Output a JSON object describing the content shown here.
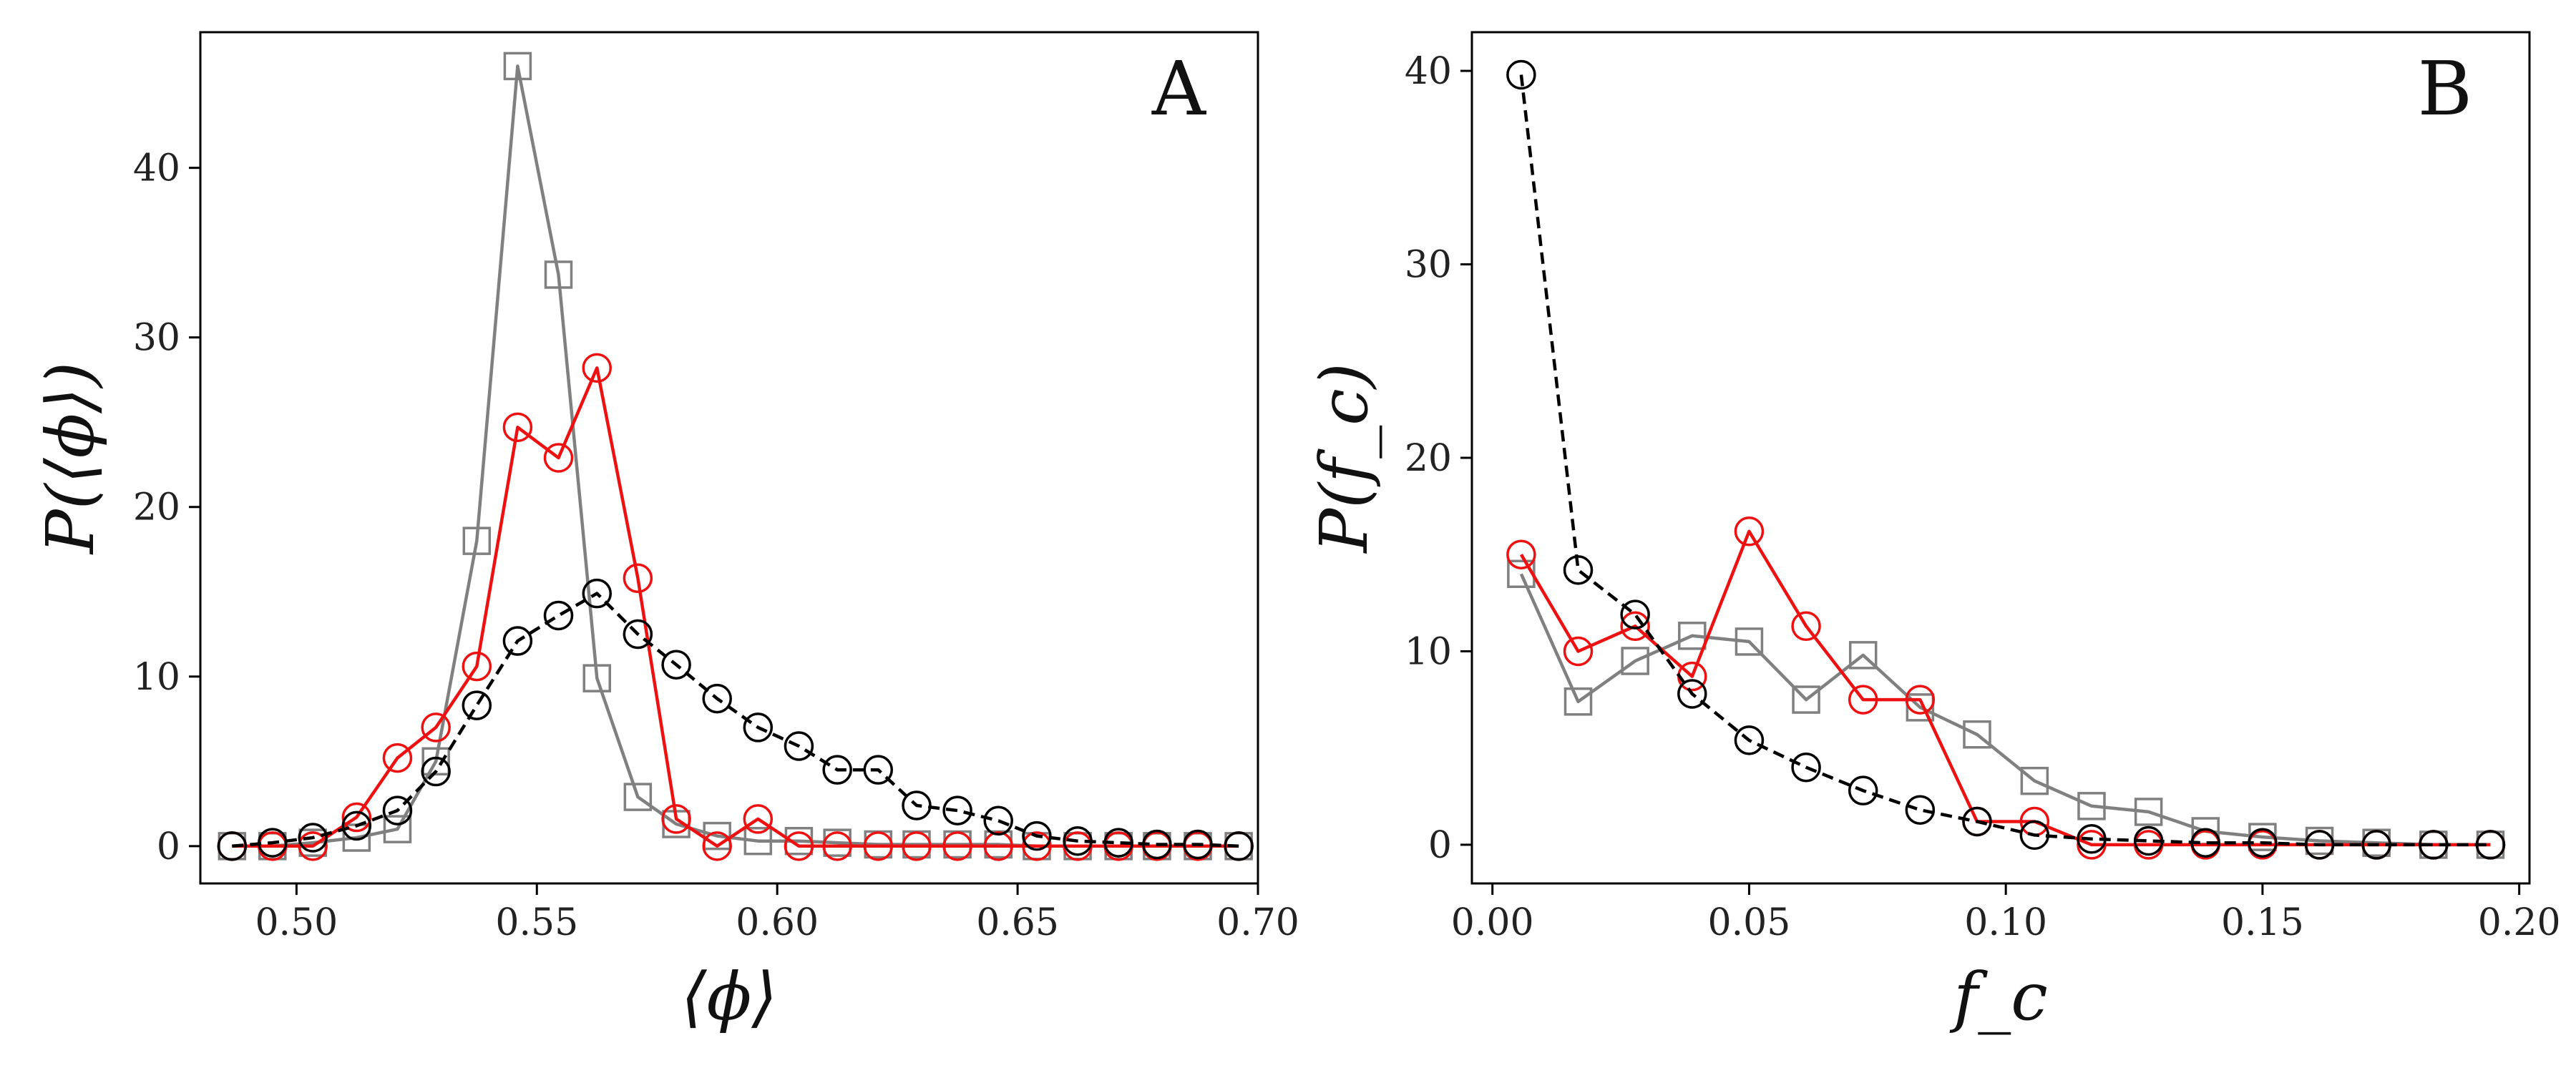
{
  "chart_data": [
    {
      "type": "line",
      "panel_label": "A",
      "xlabel": "⟨ϕ⟩",
      "ylabel": "P(⟨ϕ⟩)",
      "xlim": [
        0.48,
        0.7
      ],
      "ylim": [
        -2.2,
        48
      ],
      "xticks": [
        0.5,
        0.55,
        0.6,
        0.65,
        0.7
      ],
      "xtick_labels": [
        "0.50",
        "0.55",
        "0.60",
        "0.65",
        "0.70"
      ],
      "yticks": [
        0,
        10,
        20,
        30,
        40
      ],
      "ytick_labels": [
        "0",
        "10",
        "20",
        "30",
        "40"
      ],
      "series": [
        {
          "name": "gray squares",
          "color": "#808080",
          "dash": "solid",
          "marker": "square",
          "x": [
            0.4866,
            0.495,
            0.5034,
            0.5125,
            0.521,
            0.529,
            0.5375,
            0.546,
            0.5545,
            0.5625,
            0.571,
            0.579,
            0.5875,
            0.596,
            0.6045,
            0.6125,
            0.621,
            0.629,
            0.6375,
            0.646,
            0.654,
            0.6625,
            0.671,
            0.679,
            0.6875,
            0.696
          ],
          "values": [
            0,
            0,
            0.2,
            0.5,
            1.0,
            5.0,
            18.0,
            46.0,
            33.7,
            9.9,
            2.9,
            1.3,
            0.6,
            0.3,
            0.3,
            0.2,
            0.1,
            0.1,
            0.1,
            0.1,
            0,
            0,
            0,
            0,
            0,
            0
          ]
        },
        {
          "name": "red circles",
          "color": "#ee1111",
          "dash": "solid",
          "marker": "circle",
          "x": [
            0.4866,
            0.495,
            0.5034,
            0.5125,
            0.521,
            0.529,
            0.5375,
            0.546,
            0.5545,
            0.5625,
            0.571,
            0.579,
            0.5875,
            0.596,
            0.6045,
            0.6125,
            0.621,
            0.629,
            0.6375,
            0.646,
            0.654,
            0.6625,
            0.671,
            0.679,
            0.6875,
            0.696
          ],
          "values": [
            0,
            0,
            0,
            1.7,
            5.2,
            7.0,
            10.6,
            24.7,
            22.9,
            28.2,
            15.8,
            1.6,
            0,
            1.6,
            0,
            0,
            0,
            0,
            0,
            0,
            0,
            0,
            0,
            0,
            0,
            0
          ]
        },
        {
          "name": "black circles",
          "color": "#000000",
          "dash": "dashed",
          "marker": "circle",
          "x": [
            0.4866,
            0.495,
            0.5034,
            0.5125,
            0.521,
            0.529,
            0.5375,
            0.546,
            0.5545,
            0.5625,
            0.571,
            0.579,
            0.5875,
            0.596,
            0.6045,
            0.6125,
            0.621,
            0.629,
            0.6375,
            0.646,
            0.654,
            0.6625,
            0.671,
            0.679,
            0.6875,
            0.696
          ],
          "values": [
            0,
            0.2,
            0.5,
            1.2,
            2.1,
            4.4,
            8.3,
            12.1,
            13.6,
            14.9,
            12.5,
            10.7,
            8.7,
            7.0,
            5.9,
            4.5,
            4.5,
            2.4,
            2.1,
            1.5,
            0.6,
            0.3,
            0.2,
            0.1,
            0.1,
            0
          ]
        }
      ]
    },
    {
      "type": "line",
      "panel_label": "B",
      "xlabel": "f_c",
      "ylabel": "P(f_c)",
      "xlim": [
        -0.004,
        0.202
      ],
      "ylim": [
        -2.0,
        42.0
      ],
      "xticks": [
        0.0,
        0.05,
        0.1,
        0.15,
        0.2
      ],
      "xtick_labels": [
        "0.00",
        "0.05",
        "0.10",
        "0.15",
        "0.20"
      ],
      "yticks": [
        0,
        10,
        20,
        30,
        40
      ],
      "ytick_labels": [
        "0",
        "10",
        "20",
        "30",
        "40"
      ],
      "series": [
        {
          "name": "gray squares",
          "color": "#808080",
          "dash": "solid",
          "marker": "square",
          "x": [
            0.0056,
            0.0167,
            0.0278,
            0.0389,
            0.05,
            0.0611,
            0.0722,
            0.0833,
            0.0944,
            0.1056,
            0.1167,
            0.1278,
            0.1389,
            0.15,
            0.1611,
            0.1722,
            0.1833,
            0.1944
          ],
          "values": [
            14.0,
            7.4,
            9.5,
            10.8,
            10.5,
            7.5,
            9.8,
            7.1,
            5.7,
            3.3,
            2.0,
            1.7,
            0.7,
            0.4,
            0.2,
            0.1,
            0,
            0
          ]
        },
        {
          "name": "red circles",
          "color": "#ee1111",
          "dash": "solid",
          "marker": "circle",
          "x": [
            0.0056,
            0.0167,
            0.0278,
            0.0389,
            0.05,
            0.0611,
            0.0722,
            0.0833,
            0.0944,
            0.1056,
            0.1167,
            0.1278,
            0.1389,
            0.15,
            0.1611,
            0.1722,
            0.1833,
            0.1944
          ],
          "values": [
            15.0,
            10.0,
            11.3,
            8.7,
            16.2,
            11.3,
            7.5,
            7.5,
            1.2,
            1.2,
            0,
            0,
            0,
            0,
            0,
            0,
            0,
            0
          ]
        },
        {
          "name": "black circles",
          "color": "#000000",
          "dash": "dashed",
          "marker": "circle",
          "x": [
            0.0056,
            0.0167,
            0.0278,
            0.0389,
            0.05,
            0.0611,
            0.0722,
            0.0833,
            0.0944,
            0.1056,
            0.1167,
            0.1278,
            0.1389,
            0.15,
            0.1611,
            0.1722,
            0.1833,
            0.1944
          ],
          "values": [
            39.8,
            14.2,
            11.9,
            7.8,
            5.4,
            4.0,
            2.8,
            1.8,
            1.2,
            0.5,
            0.3,
            0.2,
            0.1,
            0.1,
            0,
            0,
            0,
            0
          ]
        }
      ]
    }
  ]
}
